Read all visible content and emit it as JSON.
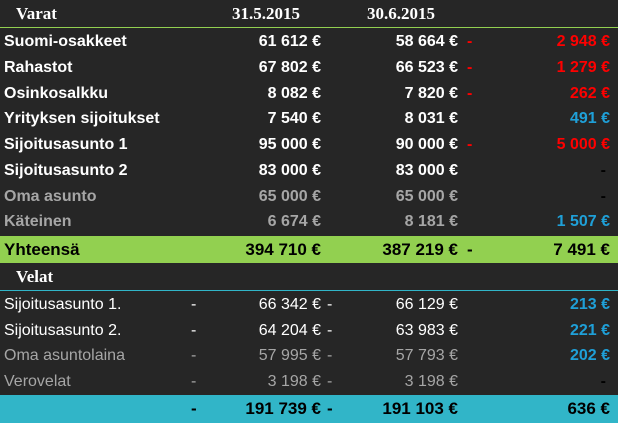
{
  "assets": {
    "header": {
      "label": "Varat",
      "date1": "31.5.2015",
      "date2": "30.6.2015"
    },
    "rows": [
      {
        "name": "Suomi-osakkeet",
        "v1": "61 612 €",
        "v2": "58 664 €",
        "mark": "-",
        "change": "2 948 €",
        "change_color": "red",
        "dim": false
      },
      {
        "name": "Rahastot",
        "v1": "67 802 €",
        "v2": "66 523 €",
        "mark": "-",
        "change": "1 279 €",
        "change_color": "red",
        "dim": false
      },
      {
        "name": "Osinkosalkku",
        "v1": "8 082 €",
        "v2": "7 820 €",
        "mark": "-",
        "change": "262 €",
        "change_color": "red",
        "dim": false
      },
      {
        "name": "Yrityksen sijoitukset",
        "v1": "7 540 €",
        "v2": "8 031 €",
        "mark": "",
        "change": "491 €",
        "change_color": "blue",
        "dim": false
      },
      {
        "name": "Sijoitusasunto 1",
        "v1": "95 000 €",
        "v2": "90 000 €",
        "mark": "-",
        "change": "5 000 €",
        "change_color": "red",
        "dim": false
      },
      {
        "name": "Sijoitusasunto 2",
        "v1": "83 000 €",
        "v2": "83 000 €",
        "mark": "",
        "change": "-",
        "change_color": "black",
        "dim": false
      },
      {
        "name": "Oma asunto",
        "v1": "65 000 €",
        "v2": "65 000 €",
        "mark": "",
        "change": "-",
        "change_color": "black",
        "dim": true
      },
      {
        "name": "Käteinen",
        "v1": "6 674 €",
        "v2": "8 181 €",
        "mark": "",
        "change": "1 507 €",
        "change_color": "blue",
        "dim": true
      }
    ],
    "total": {
      "name": "Yhteensä",
      "v1": "394 710 €",
      "v2": "387 219 €",
      "mark": "-",
      "change": "7 491 €"
    }
  },
  "liabilities": {
    "header": {
      "label": "Velat"
    },
    "rows": [
      {
        "name": "Sijoitusasunto 1.",
        "m1": "-",
        "v1": "66 342 €",
        "m2": "-",
        "v2": "66 129 €",
        "change": "213 €",
        "change_color": "blue",
        "dim": false
      },
      {
        "name": "Sijoitusasunto 2.",
        "m1": "-",
        "v1": "64 204 €",
        "m2": "-",
        "v2": "63 983 €",
        "change": "221 €",
        "change_color": "blue",
        "dim": false
      },
      {
        "name": "Oma asuntolaina",
        "m1": "-",
        "v1": "57 995 €",
        "m2": "-",
        "v2": "57 793 €",
        "change": "202 €",
        "change_color": "blue",
        "dim": true
      },
      {
        "name": "Verovelat",
        "m1": "-",
        "v1": "3 198 €",
        "m2": "-",
        "v2": "3 198 €",
        "change": "-",
        "change_color": "black",
        "dim": true
      }
    ],
    "total": {
      "m1": "-",
      "v1": "191 739 €",
      "m2": "-",
      "v2": "191 103 €",
      "change": "636 €"
    }
  },
  "colors": {
    "background": "#262626",
    "assets_total_bg": "#92d050",
    "liabilities_total_bg": "#31b5c8",
    "negative": "#ff0000",
    "positive": "#1fa0d8",
    "dim_text": "#a6a6a6"
  }
}
